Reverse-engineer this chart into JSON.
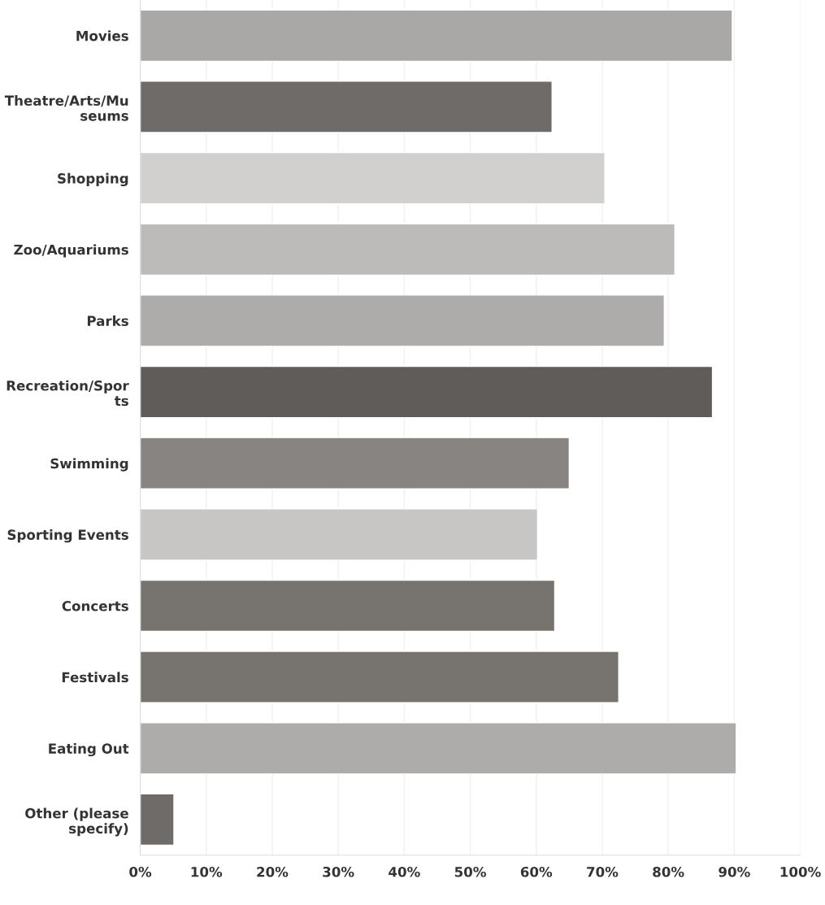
{
  "chart_data": {
    "type": "bar",
    "orientation": "horizontal",
    "categories": [
      "Movies",
      "Theatre/Arts/Mu\nseums",
      "Shopping",
      "Zoo/Aquariums",
      "Parks",
      "Recreation/Spor\nts",
      "Swimming",
      "Sporting Events",
      "Concerts",
      "Festivals",
      "Eating Out",
      "Other (please\nspecify)"
    ],
    "values": [
      89.7,
      62.4,
      70.4,
      81.0,
      79.4,
      86.7,
      65.0,
      60.2,
      62.8,
      72.5,
      90.3,
      5.1
    ],
    "colors": [
      "#aaa8a6",
      "#6e6b69",
      "#d2d0ce",
      "#bdbbb9",
      "#aeacaa",
      "#5f5c5a",
      "#878482",
      "#c8c6c4",
      "#77746f",
      "#77746f",
      "#aeacaa",
      "#6e6b69"
    ],
    "xlim": [
      0,
      100
    ],
    "xticks": [
      {
        "value": 0,
        "label": "0%"
      },
      {
        "value": 10,
        "label": "10%"
      },
      {
        "value": 20,
        "label": "20%"
      },
      {
        "value": 30,
        "label": "30%"
      },
      {
        "value": 40,
        "label": "40%"
      },
      {
        "value": 50,
        "label": "50%"
      },
      {
        "value": 60,
        "label": "60%"
      },
      {
        "value": 70,
        "label": "70%"
      },
      {
        "value": 80,
        "label": "80%"
      },
      {
        "value": 90,
        "label": "90%"
      },
      {
        "value": 100,
        "label": "100%"
      }
    ],
    "grid": "x"
  }
}
